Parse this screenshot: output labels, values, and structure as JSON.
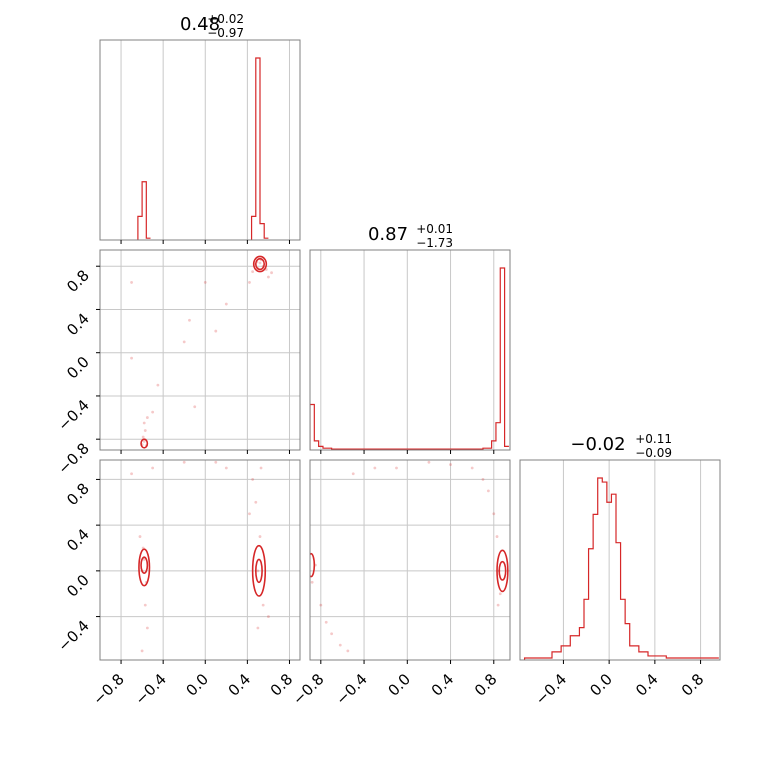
{
  "titles": [
    {
      "main": "0.48",
      "sup": "+0.02",
      "sub": "−0.97"
    },
    {
      "main": "0.87",
      "sup": "+0.01",
      "sub": "−1.73"
    },
    {
      "main": "−0.02",
      "sup": "+0.11",
      "sub": "−0.09"
    }
  ],
  "tick_labels": {
    "x": [
      "−0.8",
      "−0.4",
      "0.0",
      "0.4",
      "0.8"
    ],
    "x_ticks": [
      -0.8,
      -0.4,
      0.0,
      0.4,
      0.8
    ],
    "y1": [
      "−0.8",
      "−0.4",
      "0.0",
      "0.4",
      "0.8"
    ],
    "y1_ticks": [
      -0.8,
      -0.4,
      0.0,
      0.4,
      0.8
    ],
    "y2": [
      "−0.4",
      "0.0",
      "0.4",
      "0.8"
    ],
    "y2_ticks": [
      -0.4,
      0.0,
      0.4,
      0.8
    ],
    "x3": [
      "−0.4",
      "0.0",
      "0.4",
      "0.8"
    ],
    "x3_ticks": [
      -0.4,
      0.0,
      0.4,
      0.8
    ]
  },
  "colors": {
    "line": "#d62728",
    "grid": "#c8c8c8",
    "frame": "#808080"
  },
  "chart_data": [
    {
      "type": "histogram",
      "panel": "p0-marginal",
      "x_range": [
        -1.0,
        0.9
      ],
      "bins": [
        {
          "x0": -0.64,
          "x1": -0.6,
          "h": 0.13
        },
        {
          "x0": -0.6,
          "x1": -0.56,
          "h": 0.32
        },
        {
          "x0": -0.56,
          "x1": -0.52,
          "h": 0.01
        },
        {
          "x0": 0.44,
          "x1": 0.48,
          "h": 0.13
        },
        {
          "x0": 0.48,
          "x1": 0.52,
          "h": 1.0
        },
        {
          "x0": 0.52,
          "x1": 0.56,
          "h": 0.09
        },
        {
          "x0": 0.56,
          "x1": 0.6,
          "h": 0.01
        }
      ]
    },
    {
      "type": "scatter",
      "panel": "p0-p1",
      "x_range": [
        -1.0,
        0.9
      ],
      "y_range": [
        -0.9,
        0.95
      ],
      "points": [
        [
          0.49,
          0.84
        ],
        [
          0.52,
          0.83
        ],
        [
          0.55,
          0.8
        ],
        [
          0.5,
          0.78
        ],
        [
          0.47,
          0.82
        ],
        [
          0.53,
          0.86
        ],
        [
          0.58,
          0.77
        ],
        [
          0.45,
          0.75
        ],
        [
          0.6,
          0.7
        ],
        [
          0.42,
          0.65
        ],
        [
          0.63,
          0.74
        ],
        [
          -0.58,
          -0.82
        ],
        [
          -0.59,
          -0.78
        ],
        [
          -0.57,
          -0.72
        ],
        [
          -0.6,
          -0.85
        ],
        [
          -0.56,
          -0.86
        ],
        [
          -0.58,
          -0.65
        ],
        [
          -0.55,
          -0.6
        ],
        [
          -0.5,
          -0.55
        ],
        [
          -0.7,
          0.65
        ],
        [
          -0.45,
          -0.3
        ],
        [
          -0.7,
          -0.05
        ],
        [
          -0.2,
          0.1
        ],
        [
          -0.15,
          0.3
        ],
        [
          0.0,
          0.65
        ],
        [
          0.1,
          0.2
        ],
        [
          -0.1,
          -0.5
        ],
        [
          0.2,
          0.45
        ]
      ],
      "contours": [
        {
          "cx": 0.52,
          "cy": 0.82,
          "rx": 0.04,
          "ry": 0.05
        },
        {
          "cx": 0.52,
          "cy": 0.82,
          "rx": 0.06,
          "ry": 0.07
        },
        {
          "cx": -0.58,
          "cy": -0.84,
          "rx": 0.03,
          "ry": 0.04
        }
      ]
    },
    {
      "type": "histogram",
      "panel": "p1-marginal",
      "x_range": [
        -0.9,
        0.95
      ],
      "bins": [
        {
          "x0": -0.9,
          "x1": -0.86,
          "h": 0.25
        },
        {
          "x0": -0.86,
          "x1": -0.82,
          "h": 0.05
        },
        {
          "x0": -0.82,
          "x1": -0.78,
          "h": 0.02
        },
        {
          "x0": -0.78,
          "x1": -0.7,
          "h": 0.01
        },
        {
          "x0": -0.7,
          "x1": 0.7,
          "h": 0.005
        },
        {
          "x0": 0.7,
          "x1": 0.78,
          "h": 0.01
        },
        {
          "x0": 0.78,
          "x1": 0.82,
          "h": 0.05
        },
        {
          "x0": 0.82,
          "x1": 0.86,
          "h": 0.15
        },
        {
          "x0": 0.86,
          "x1": 0.9,
          "h": 1.0
        },
        {
          "x0": 0.9,
          "x1": 0.94,
          "h": 0.02
        }
      ]
    },
    {
      "type": "scatter",
      "panel": "p0-p2",
      "x_range": [
        -1.0,
        0.9
      ],
      "y_range": [
        -0.78,
        0.97
      ],
      "points": [
        [
          -0.58,
          0.1
        ],
        [
          -0.6,
          0.0
        ],
        [
          -0.56,
          -0.1
        ],
        [
          -0.59,
          0.2
        ],
        [
          -0.57,
          -0.3
        ],
        [
          -0.55,
          -0.5
        ],
        [
          -0.6,
          -0.7
        ],
        [
          -0.62,
          0.3
        ],
        [
          0.5,
          0.0
        ],
        [
          0.52,
          0.3
        ],
        [
          0.48,
          0.6
        ],
        [
          0.45,
          0.8
        ],
        [
          0.55,
          -0.3
        ],
        [
          0.6,
          -0.4
        ],
        [
          0.42,
          0.5
        ],
        [
          0.5,
          -0.5
        ],
        [
          0.53,
          0.9
        ],
        [
          -0.5,
          0.9
        ],
        [
          -0.2,
          0.95
        ],
        [
          0.1,
          0.95
        ],
        [
          0.2,
          0.9
        ],
        [
          -0.7,
          0.85
        ]
      ],
      "contours": [
        {
          "cx": -0.58,
          "cy": 0.05,
          "rx": 0.03,
          "ry": 0.07
        },
        {
          "cx": -0.58,
          "cy": 0.03,
          "rx": 0.05,
          "ry": 0.16
        },
        {
          "cx": 0.51,
          "cy": 0.0,
          "rx": 0.03,
          "ry": 0.1
        },
        {
          "cx": 0.51,
          "cy": 0.0,
          "rx": 0.06,
          "ry": 0.22
        }
      ]
    },
    {
      "type": "scatter",
      "panel": "p1-p2",
      "x_range": [
        -0.9,
        0.95
      ],
      "y_range": [
        -0.78,
        0.97
      ],
      "points": [
        [
          -0.85,
          0.05
        ],
        [
          -0.88,
          -0.1
        ],
        [
          -0.8,
          -0.3
        ],
        [
          -0.75,
          -0.45
        ],
        [
          -0.7,
          -0.55
        ],
        [
          -0.62,
          -0.65
        ],
        [
          -0.55,
          -0.7
        ],
        [
          0.85,
          0.0
        ],
        [
          0.83,
          0.3
        ],
        [
          0.8,
          0.5
        ],
        [
          0.75,
          0.7
        ],
        [
          0.7,
          0.8
        ],
        [
          0.6,
          0.9
        ],
        [
          0.86,
          -0.2
        ],
        [
          0.84,
          -0.3
        ],
        [
          0.2,
          0.95
        ],
        [
          -0.1,
          0.9
        ],
        [
          -0.3,
          0.9
        ],
        [
          0.4,
          0.93
        ],
        [
          -0.5,
          0.85
        ]
      ],
      "contours": [
        {
          "cx": 0.88,
          "cy": 0.0,
          "rx": 0.03,
          "ry": 0.08
        },
        {
          "cx": 0.88,
          "cy": 0.0,
          "rx": 0.05,
          "ry": 0.18
        },
        {
          "cx": -0.89,
          "cy": 0.05,
          "rx": 0.03,
          "ry": 0.1
        }
      ]
    },
    {
      "type": "histogram",
      "panel": "p2-marginal",
      "x_range": [
        -0.78,
        0.97
      ],
      "bins": [
        {
          "x0": -0.74,
          "x1": -0.5,
          "h": 0.01
        },
        {
          "x0": -0.5,
          "x1": -0.42,
          "h": 0.04
        },
        {
          "x0": -0.42,
          "x1": -0.34,
          "h": 0.07
        },
        {
          "x0": -0.34,
          "x1": -0.26,
          "h": 0.12
        },
        {
          "x0": -0.26,
          "x1": -0.22,
          "h": 0.16
        },
        {
          "x0": -0.22,
          "x1": -0.18,
          "h": 0.3
        },
        {
          "x0": -0.18,
          "x1": -0.14,
          "h": 0.55
        },
        {
          "x0": -0.14,
          "x1": -0.1,
          "h": 0.72
        },
        {
          "x0": -0.1,
          "x1": -0.06,
          "h": 0.9
        },
        {
          "x0": -0.06,
          "x1": -0.02,
          "h": 0.88
        },
        {
          "x0": -0.02,
          "x1": 0.02,
          "h": 0.78
        },
        {
          "x0": 0.02,
          "x1": 0.06,
          "h": 0.82
        },
        {
          "x0": 0.06,
          "x1": 0.1,
          "h": 0.58
        },
        {
          "x0": 0.1,
          "x1": 0.14,
          "h": 0.3
        },
        {
          "x0": 0.14,
          "x1": 0.18,
          "h": 0.18
        },
        {
          "x0": 0.18,
          "x1": 0.26,
          "h": 0.07
        },
        {
          "x0": 0.26,
          "x1": 0.34,
          "h": 0.04
        },
        {
          "x0": 0.34,
          "x1": 0.5,
          "h": 0.02
        },
        {
          "x0": 0.5,
          "x1": 0.96,
          "h": 0.01
        }
      ]
    }
  ]
}
